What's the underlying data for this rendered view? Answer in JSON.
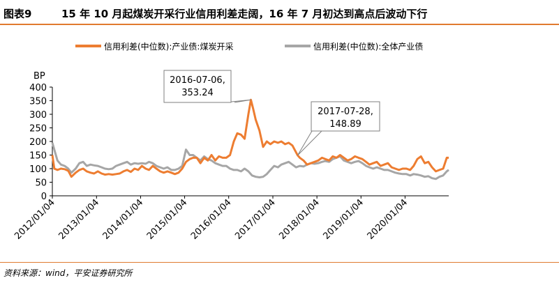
{
  "header": {
    "figure_label": "图表9",
    "title": "15 年 10 月起煤炭开采行业信用利差走阔，16 年 7 月初达到高点后波动下行"
  },
  "footer": {
    "source": "资料来源：wind，平安证券研究所"
  },
  "colors": {
    "accent": "#e07a2f",
    "coal_series": "#ed7d31",
    "all_series": "#a6a6a6"
  },
  "chart_data": {
    "type": "line",
    "ylabel": "BP",
    "ylim": [
      0,
      400
    ],
    "yticks": [
      0,
      50,
      100,
      150,
      200,
      250,
      300,
      350,
      400
    ],
    "xlim": [
      "2012-01-04",
      "2020-12-31"
    ],
    "xticks": [
      "2012/01/04",
      "2013/01/04",
      "2014/01/04",
      "2015/01/04",
      "2016/01/04",
      "2017/01/04",
      "2018/01/04",
      "2019/01/04",
      "2020/01/04"
    ],
    "legend_position": "top",
    "grid": false,
    "series": [
      {
        "name": "信用利差(中位数):产业债:煤炭开采",
        "color": "#ed7d31",
        "points": [
          [
            "2012-01-04",
            150
          ],
          [
            "2012-01-20",
            100
          ],
          [
            "2012-02-15",
            95
          ],
          [
            "2012-03-15",
            100
          ],
          [
            "2012-04-15",
            98
          ],
          [
            "2012-05-15",
            92
          ],
          [
            "2012-06-10",
            70
          ],
          [
            "2012-07-15",
            85
          ],
          [
            "2012-08-15",
            95
          ],
          [
            "2012-09-15",
            100
          ],
          [
            "2012-10-15",
            90
          ],
          [
            "2012-11-15",
            85
          ],
          [
            "2012-12-15",
            82
          ],
          [
            "2013-01-15",
            90
          ],
          [
            "2013-02-15",
            82
          ],
          [
            "2013-03-15",
            78
          ],
          [
            "2013-04-15",
            80
          ],
          [
            "2013-05-15",
            78
          ],
          [
            "2013-06-15",
            80
          ],
          [
            "2013-07-15",
            82
          ],
          [
            "2013-08-15",
            90
          ],
          [
            "2013-09-15",
            95
          ],
          [
            "2013-10-15",
            88
          ],
          [
            "2013-11-15",
            100
          ],
          [
            "2013-12-15",
            95
          ],
          [
            "2014-01-15",
            110
          ],
          [
            "2014-02-15",
            100
          ],
          [
            "2014-03-15",
            95
          ],
          [
            "2014-04-15",
            110
          ],
          [
            "2014-05-15",
            100
          ],
          [
            "2014-06-15",
            90
          ],
          [
            "2014-07-15",
            85
          ],
          [
            "2014-08-15",
            90
          ],
          [
            "2014-09-15",
            85
          ],
          [
            "2014-10-15",
            80
          ],
          [
            "2014-11-15",
            85
          ],
          [
            "2014-12-15",
            100
          ],
          [
            "2015-01-15",
            125
          ],
          [
            "2015-02-15",
            135
          ],
          [
            "2015-03-15",
            140
          ],
          [
            "2015-04-15",
            140
          ],
          [
            "2015-05-15",
            120
          ],
          [
            "2015-06-15",
            140
          ],
          [
            "2015-07-15",
            130
          ],
          [
            "2015-08-15",
            150
          ],
          [
            "2015-09-15",
            130
          ],
          [
            "2015-10-15",
            145
          ],
          [
            "2015-11-15",
            140
          ],
          [
            "2015-12-15",
            140
          ],
          [
            "2016-01-15",
            150
          ],
          [
            "2016-02-15",
            200
          ],
          [
            "2016-03-15",
            230
          ],
          [
            "2016-04-15",
            225
          ],
          [
            "2016-05-15",
            210
          ],
          [
            "2016-06-15",
            300
          ],
          [
            "2016-07-06",
            353.24
          ],
          [
            "2016-07-25",
            320
          ],
          [
            "2016-08-15",
            280
          ],
          [
            "2016-09-15",
            240
          ],
          [
            "2016-10-15",
            180
          ],
          [
            "2016-11-15",
            200
          ],
          [
            "2016-12-15",
            190
          ],
          [
            "2017-01-15",
            200
          ],
          [
            "2017-02-15",
            195
          ],
          [
            "2017-03-15",
            200
          ],
          [
            "2017-04-15",
            190
          ],
          [
            "2017-05-15",
            195
          ],
          [
            "2017-06-15",
            185
          ],
          [
            "2017-07-28",
            148.89
          ],
          [
            "2017-08-15",
            140
          ],
          [
            "2017-09-15",
            130
          ],
          [
            "2017-10-15",
            115
          ],
          [
            "2017-11-15",
            120
          ],
          [
            "2017-12-15",
            125
          ],
          [
            "2018-01-15",
            130
          ],
          [
            "2018-02-15",
            140
          ],
          [
            "2018-03-15",
            135
          ],
          [
            "2018-04-15",
            130
          ],
          [
            "2018-05-15",
            145
          ],
          [
            "2018-06-15",
            140
          ],
          [
            "2018-07-15",
            150
          ],
          [
            "2018-08-15",
            140
          ],
          [
            "2018-09-15",
            130
          ],
          [
            "2018-10-15",
            135
          ],
          [
            "2018-11-15",
            145
          ],
          [
            "2018-12-15",
            140
          ],
          [
            "2019-01-15",
            135
          ],
          [
            "2019-02-15",
            125
          ],
          [
            "2019-03-15",
            115
          ],
          [
            "2019-04-15",
            120
          ],
          [
            "2019-05-15",
            125
          ],
          [
            "2019-06-15",
            110
          ],
          [
            "2019-07-15",
            115
          ],
          [
            "2019-08-15",
            120
          ],
          [
            "2019-09-15",
            105
          ],
          [
            "2019-10-15",
            100
          ],
          [
            "2019-11-15",
            95
          ],
          [
            "2019-12-15",
            100
          ],
          [
            "2020-01-15",
            100
          ],
          [
            "2020-02-15",
            95
          ],
          [
            "2020-03-15",
            110
          ],
          [
            "2020-04-15",
            135
          ],
          [
            "2020-05-15",
            145
          ],
          [
            "2020-06-15",
            120
          ],
          [
            "2020-07-15",
            125
          ],
          [
            "2020-08-15",
            105
          ],
          [
            "2020-09-15",
            90
          ],
          [
            "2020-10-15",
            95
          ],
          [
            "2020-11-15",
            100
          ],
          [
            "2020-12-15",
            140
          ],
          [
            "2020-12-31",
            140
          ]
        ]
      },
      {
        "name": "信用利差(中位数):全体产业债",
        "color": "#a6a6a6",
        "points": [
          [
            "2012-01-04",
            195
          ],
          [
            "2012-02-15",
            130
          ],
          [
            "2012-03-15",
            115
          ],
          [
            "2012-04-15",
            110
          ],
          [
            "2012-05-15",
            100
          ],
          [
            "2012-06-10",
            85
          ],
          [
            "2012-07-15",
            100
          ],
          [
            "2012-08-15",
            120
          ],
          [
            "2012-09-15",
            125
          ],
          [
            "2012-10-15",
            110
          ],
          [
            "2012-11-15",
            115
          ],
          [
            "2012-12-15",
            112
          ],
          [
            "2013-01-15",
            110
          ],
          [
            "2013-02-15",
            105
          ],
          [
            "2013-03-15",
            100
          ],
          [
            "2013-04-15",
            98
          ],
          [
            "2013-05-15",
            100
          ],
          [
            "2013-06-15",
            110
          ],
          [
            "2013-07-15",
            115
          ],
          [
            "2013-08-15",
            120
          ],
          [
            "2013-09-15",
            125
          ],
          [
            "2013-10-15",
            115
          ],
          [
            "2013-11-15",
            120
          ],
          [
            "2013-12-15",
            118
          ],
          [
            "2014-01-15",
            120
          ],
          [
            "2014-02-15",
            118
          ],
          [
            "2014-03-15",
            125
          ],
          [
            "2014-04-15",
            120
          ],
          [
            "2014-05-15",
            110
          ],
          [
            "2014-06-15",
            105
          ],
          [
            "2014-07-15",
            100
          ],
          [
            "2014-08-15",
            105
          ],
          [
            "2014-09-15",
            95
          ],
          [
            "2014-10-15",
            95
          ],
          [
            "2014-11-15",
            100
          ],
          [
            "2014-12-15",
            110
          ],
          [
            "2015-01-15",
            170
          ],
          [
            "2015-02-15",
            150
          ],
          [
            "2015-03-15",
            150
          ],
          [
            "2015-04-15",
            140
          ],
          [
            "2015-05-15",
            130
          ],
          [
            "2015-06-15",
            145
          ],
          [
            "2015-07-15",
            135
          ],
          [
            "2015-08-15",
            130
          ],
          [
            "2015-09-15",
            120
          ],
          [
            "2015-10-15",
            115
          ],
          [
            "2015-11-15",
            110
          ],
          [
            "2015-12-15",
            110
          ],
          [
            "2016-01-15",
            100
          ],
          [
            "2016-02-15",
            95
          ],
          [
            "2016-03-15",
            95
          ],
          [
            "2016-04-15",
            90
          ],
          [
            "2016-05-15",
            100
          ],
          [
            "2016-06-15",
            90
          ],
          [
            "2016-07-15",
            75
          ],
          [
            "2016-08-15",
            70
          ],
          [
            "2016-09-15",
            68
          ],
          [
            "2016-10-15",
            70
          ],
          [
            "2016-11-15",
            80
          ],
          [
            "2016-12-15",
            95
          ],
          [
            "2017-01-15",
            110
          ],
          [
            "2017-02-15",
            105
          ],
          [
            "2017-03-15",
            115
          ],
          [
            "2017-04-15",
            120
          ],
          [
            "2017-05-15",
            125
          ],
          [
            "2017-06-15",
            115
          ],
          [
            "2017-07-15",
            105
          ],
          [
            "2017-08-15",
            110
          ],
          [
            "2017-09-15",
            108
          ],
          [
            "2017-10-15",
            115
          ],
          [
            "2017-11-15",
            120
          ],
          [
            "2017-12-15",
            118
          ],
          [
            "2018-01-15",
            120
          ],
          [
            "2018-02-15",
            125
          ],
          [
            "2018-03-15",
            128
          ],
          [
            "2018-04-15",
            125
          ],
          [
            "2018-05-15",
            135
          ],
          [
            "2018-06-15",
            140
          ],
          [
            "2018-07-15",
            145
          ],
          [
            "2018-08-15",
            130
          ],
          [
            "2018-09-15",
            125
          ],
          [
            "2018-10-15",
            120
          ],
          [
            "2018-11-15",
            125
          ],
          [
            "2018-12-15",
            128
          ],
          [
            "2019-01-15",
            120
          ],
          [
            "2019-02-15",
            110
          ],
          [
            "2019-03-15",
            105
          ],
          [
            "2019-04-15",
            100
          ],
          [
            "2019-05-15",
            105
          ],
          [
            "2019-06-15",
            100
          ],
          [
            "2019-07-15",
            95
          ],
          [
            "2019-08-15",
            95
          ],
          [
            "2019-09-15",
            90
          ],
          [
            "2019-10-15",
            85
          ],
          [
            "2019-11-15",
            82
          ],
          [
            "2019-12-15",
            80
          ],
          [
            "2020-01-15",
            80
          ],
          [
            "2020-02-15",
            75
          ],
          [
            "2020-03-15",
            80
          ],
          [
            "2020-04-15",
            78
          ],
          [
            "2020-05-15",
            75
          ],
          [
            "2020-06-15",
            70
          ],
          [
            "2020-07-15",
            72
          ],
          [
            "2020-08-15",
            65
          ],
          [
            "2020-09-15",
            62
          ],
          [
            "2020-10-15",
            70
          ],
          [
            "2020-11-15",
            75
          ],
          [
            "2020-12-15",
            90
          ],
          [
            "2020-12-31",
            95
          ]
        ]
      }
    ],
    "annotations": [
      {
        "lines": [
          "2016-07-06,",
          "353.24"
        ],
        "x": "2016-07-06",
        "y": 353.24
      },
      {
        "lines": [
          "2017-07-28,",
          "148.89"
        ],
        "x": "2017-07-28",
        "y": 148.89
      }
    ]
  }
}
